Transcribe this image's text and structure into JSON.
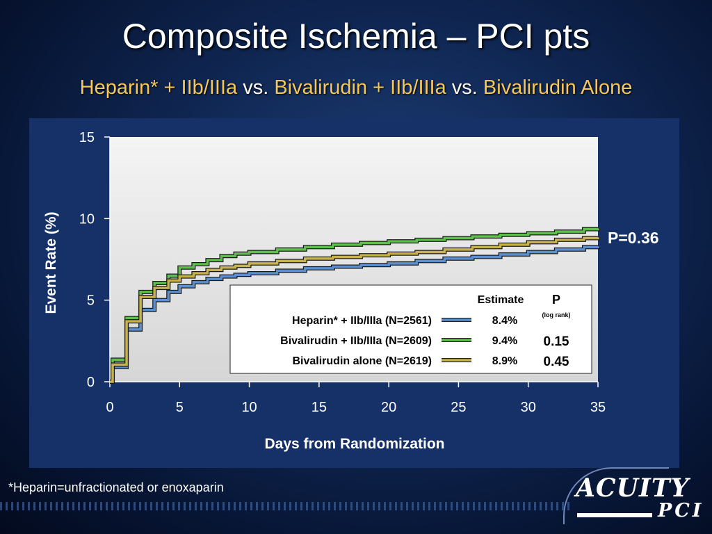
{
  "title": "Composite Ischemia – PCI pts",
  "subtitle": {
    "part1": "Heparin* + IIb/IIIa",
    "vs1": " vs. ",
    "part2": "Bivalirudin + IIb/IIIa",
    "vs2": " vs. ",
    "part3": "Bivalirudin Alone"
  },
  "footnote": "*Heparin=unfractionated or enoxaparin",
  "logo": {
    "line1": "ACUITY",
    "line2": "PCI"
  },
  "chart_data": {
    "type": "line",
    "step": true,
    "xlabel": "Days from Randomization",
    "ylabel": "Event Rate (%)",
    "xlim": [
      0,
      35
    ],
    "ylim": [
      0,
      15
    ],
    "xticks": [
      0,
      5,
      10,
      15,
      20,
      25,
      30,
      35
    ],
    "yticks": [
      0,
      5,
      10,
      15
    ],
    "grid": false,
    "annotation": "P=0.36",
    "legend": {
      "headers": {
        "estimate": "Estimate",
        "p": "P",
        "p_sub": "(log rank)"
      },
      "rows": [
        {
          "label": "Heparin* + IIb/IIIa (N=2561)",
          "estimate": "8.4%",
          "p": ""
        },
        {
          "label": "Bivalirudin + IIb/IIIa (N=2609)",
          "estimate": "9.4%",
          "p": "0.15"
        },
        {
          "label": "Bivalirudin alone (N=2619)",
          "estimate": "8.9%",
          "p": "0.45"
        }
      ]
    },
    "series": [
      {
        "color": "#5a8fd0",
        "points": [
          [
            0,
            0
          ],
          [
            0.2,
            0.9
          ],
          [
            1.2,
            3.2
          ],
          [
            2.2,
            4.4
          ],
          [
            3.2,
            5.0
          ],
          [
            4.2,
            5.5
          ],
          [
            5,
            5.85
          ],
          [
            6,
            6.1
          ],
          [
            7,
            6.3
          ],
          [
            8,
            6.45
          ],
          [
            9,
            6.55
          ],
          [
            10,
            6.65
          ],
          [
            12,
            6.8
          ],
          [
            14,
            6.95
          ],
          [
            16,
            7.05
          ],
          [
            18,
            7.15
          ],
          [
            20,
            7.25
          ],
          [
            22,
            7.4
          ],
          [
            24,
            7.55
          ],
          [
            26,
            7.65
          ],
          [
            28,
            7.8
          ],
          [
            30,
            7.95
          ],
          [
            32,
            8.1
          ],
          [
            34,
            8.25
          ],
          [
            35,
            8.3
          ]
        ]
      },
      {
        "color": "#5cc04a",
        "points": [
          [
            0,
            0
          ],
          [
            0.2,
            1.35
          ],
          [
            1.2,
            3.9
          ],
          [
            2.2,
            5.5
          ],
          [
            3.2,
            6.05
          ],
          [
            4.2,
            6.5
          ],
          [
            5,
            7.0
          ],
          [
            6,
            7.2
          ],
          [
            7,
            7.45
          ],
          [
            8,
            7.7
          ],
          [
            9,
            7.85
          ],
          [
            10,
            7.95
          ],
          [
            12,
            8.1
          ],
          [
            14,
            8.25
          ],
          [
            16,
            8.4
          ],
          [
            18,
            8.5
          ],
          [
            20,
            8.6
          ],
          [
            22,
            8.7
          ],
          [
            24,
            8.8
          ],
          [
            26,
            8.9
          ],
          [
            28,
            9.0
          ],
          [
            30,
            9.1
          ],
          [
            32,
            9.2
          ],
          [
            34,
            9.35
          ],
          [
            35,
            9.4
          ]
        ]
      },
      {
        "color": "#c8b24c",
        "points": [
          [
            0,
            0
          ],
          [
            0.2,
            1.05
          ],
          [
            1.2,
            3.7
          ],
          [
            2.2,
            5.2
          ],
          [
            3.2,
            5.75
          ],
          [
            4.2,
            6.2
          ],
          [
            5,
            6.45
          ],
          [
            6,
            6.65
          ],
          [
            7,
            6.85
          ],
          [
            8,
            7.0
          ],
          [
            9,
            7.1
          ],
          [
            10,
            7.25
          ],
          [
            12,
            7.4
          ],
          [
            14,
            7.55
          ],
          [
            16,
            7.65
          ],
          [
            18,
            7.75
          ],
          [
            20,
            7.85
          ],
          [
            22,
            7.95
          ],
          [
            24,
            8.1
          ],
          [
            26,
            8.25
          ],
          [
            28,
            8.4
          ],
          [
            30,
            8.55
          ],
          [
            32,
            8.7
          ],
          [
            34,
            8.8
          ],
          [
            35,
            8.85
          ]
        ]
      }
    ]
  }
}
